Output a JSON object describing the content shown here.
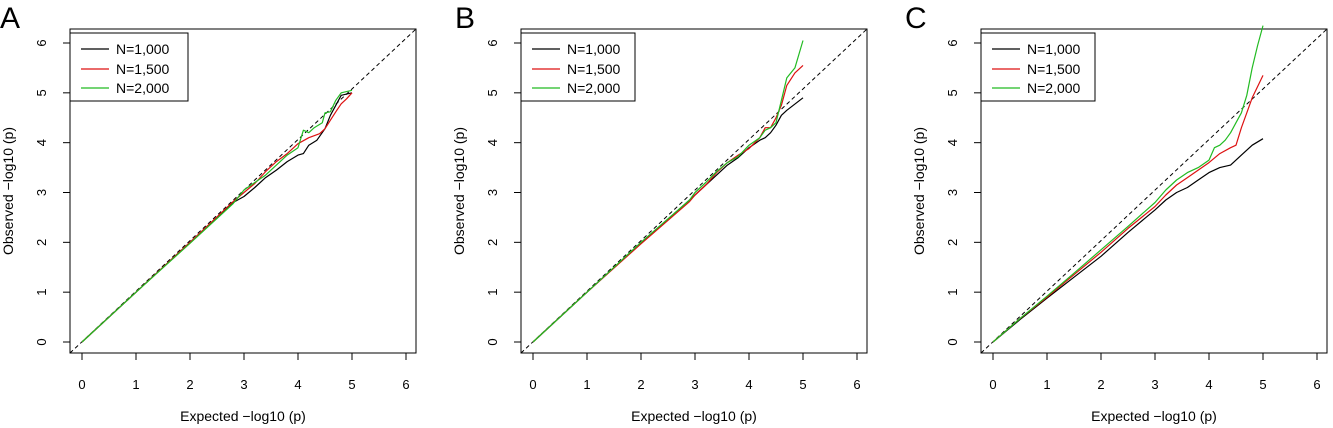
{
  "chart_data": [
    {
      "panel": "A",
      "type": "line",
      "xlabel": "Expected −log10 (p)",
      "ylabel": "Observed −log10 (p)",
      "xlim": [
        0,
        6
      ],
      "ylim": [
        0,
        6
      ],
      "xticks": [
        "0",
        "1",
        "2",
        "3",
        "4",
        "5",
        "6"
      ],
      "yticks": [
        "0",
        "1",
        "2",
        "3",
        "4",
        "5",
        "6"
      ],
      "reference_line": "y = x, dashed",
      "legend_position": "top-left",
      "series": [
        {
          "name": "N=1,000",
          "color": "#000000",
          "points": [
            [
              0,
              0
            ],
            [
              1,
              1
            ],
            [
              2,
              2
            ],
            [
              2.8,
              2.8
            ],
            [
              3.0,
              2.92
            ],
            [
              3.2,
              3.1
            ],
            [
              3.4,
              3.3
            ],
            [
              3.6,
              3.45
            ],
            [
              3.8,
              3.62
            ],
            [
              4.0,
              3.75
            ],
            [
              4.1,
              3.78
            ],
            [
              4.2,
              3.95
            ],
            [
              4.35,
              4.05
            ],
            [
              4.5,
              4.28
            ],
            [
              4.6,
              4.55
            ],
            [
              4.7,
              4.75
            ],
            [
              4.8,
              4.95
            ],
            [
              5.0,
              5.0
            ]
          ]
        },
        {
          "name": "N=1,500",
          "color": "#dd1111",
          "points": [
            [
              0,
              0
            ],
            [
              1,
              1
            ],
            [
              2,
              2
            ],
            [
              2.8,
              2.82
            ],
            [
              3.0,
              3.0
            ],
            [
              3.2,
              3.18
            ],
            [
              3.4,
              3.42
            ],
            [
              3.6,
              3.62
            ],
            [
              3.8,
              3.78
            ],
            [
              4.0,
              3.98
            ],
            [
              4.2,
              4.1
            ],
            [
              4.4,
              4.18
            ],
            [
              4.5,
              4.28
            ],
            [
              4.6,
              4.45
            ],
            [
              4.7,
              4.62
            ],
            [
              4.8,
              4.78
            ],
            [
              4.9,
              4.88
            ],
            [
              5.0,
              5.0
            ]
          ]
        },
        {
          "name": "N=2,000",
          "color": "#22bb22",
          "points": [
            [
              0,
              0
            ],
            [
              1,
              1
            ],
            [
              2,
              1.98
            ],
            [
              2.8,
              2.78
            ],
            [
              3.0,
              3.05
            ],
            [
              3.2,
              3.2
            ],
            [
              3.4,
              3.35
            ],
            [
              3.6,
              3.55
            ],
            [
              3.8,
              3.75
            ],
            [
              4.0,
              3.9
            ],
            [
              4.1,
              4.25
            ],
            [
              4.2,
              4.2
            ],
            [
              4.3,
              4.3
            ],
            [
              4.45,
              4.4
            ],
            [
              4.5,
              4.6
            ],
            [
              4.6,
              4.62
            ],
            [
              4.7,
              4.85
            ],
            [
              4.8,
              5.0
            ],
            [
              5.0,
              5.05
            ]
          ]
        }
      ]
    },
    {
      "panel": "B",
      "type": "line",
      "xlabel": "Expected −log10 (p)",
      "ylabel": "Observed −log10 (p)",
      "xlim": [
        0,
        6
      ],
      "ylim": [
        0,
        6
      ],
      "xticks": [
        "0",
        "1",
        "2",
        "3",
        "4",
        "5",
        "6"
      ],
      "yticks": [
        "0",
        "1",
        "2",
        "3",
        "4",
        "5",
        "6"
      ],
      "reference_line": "y = x, dashed",
      "legend_position": "top-left",
      "series": [
        {
          "name": "N=1,000",
          "color": "#000000",
          "points": [
            [
              0,
              0
            ],
            [
              1,
              1
            ],
            [
              2,
              1.98
            ],
            [
              2.9,
              2.85
            ],
            [
              3.0,
              2.95
            ],
            [
              3.2,
              3.15
            ],
            [
              3.4,
              3.35
            ],
            [
              3.6,
              3.55
            ],
            [
              3.8,
              3.7
            ],
            [
              4.0,
              3.9
            ],
            [
              4.2,
              4.05
            ],
            [
              4.3,
              4.1
            ],
            [
              4.4,
              4.2
            ],
            [
              4.5,
              4.35
            ],
            [
              4.6,
              4.55
            ],
            [
              4.7,
              4.65
            ],
            [
              5.0,
              4.9
            ]
          ]
        },
        {
          "name": "N=1,500",
          "color": "#dd1111",
          "points": [
            [
              0,
              0
            ],
            [
              1,
              1
            ],
            [
              2,
              1.97
            ],
            [
              2.9,
              2.82
            ],
            [
              3.0,
              2.95
            ],
            [
              3.2,
              3.15
            ],
            [
              3.4,
              3.4
            ],
            [
              3.6,
              3.6
            ],
            [
              3.8,
              3.75
            ],
            [
              4.0,
              3.88
            ],
            [
              4.2,
              4.1
            ],
            [
              4.3,
              4.3
            ],
            [
              4.4,
              4.3
            ],
            [
              4.5,
              4.5
            ],
            [
              4.6,
              4.75
            ],
            [
              4.7,
              5.15
            ],
            [
              4.85,
              5.4
            ],
            [
              5.0,
              5.55
            ]
          ]
        },
        {
          "name": "N=2,000",
          "color": "#22bb22",
          "points": [
            [
              0,
              0
            ],
            [
              1,
              1
            ],
            [
              2,
              2
            ],
            [
              2.9,
              2.85
            ],
            [
              3.0,
              3.0
            ],
            [
              3.2,
              3.2
            ],
            [
              3.4,
              3.42
            ],
            [
              3.6,
              3.6
            ],
            [
              3.8,
              3.72
            ],
            [
              4.0,
              3.95
            ],
            [
              4.2,
              4.1
            ],
            [
              4.3,
              4.25
            ],
            [
              4.4,
              4.3
            ],
            [
              4.5,
              4.4
            ],
            [
              4.6,
              4.85
            ],
            [
              4.7,
              5.3
            ],
            [
              4.85,
              5.5
            ],
            [
              5.0,
              6.05
            ]
          ]
        }
      ]
    },
    {
      "panel": "C",
      "type": "line",
      "xlabel": "Expected −log10 (p)",
      "ylabel": "Observed −log10 (p)",
      "xlim": [
        0,
        6
      ],
      "ylim": [
        0,
        6
      ],
      "xticks": [
        "0",
        "1",
        "2",
        "3",
        "4",
        "5",
        "6"
      ],
      "yticks": [
        "0",
        "1",
        "2",
        "3",
        "4",
        "5",
        "6"
      ],
      "reference_line": "y = x, dashed",
      "legend_position": "top-left",
      "series": [
        {
          "name": "N=1,000",
          "color": "#000000",
          "points": [
            [
              0,
              0
            ],
            [
              0.5,
              0.45
            ],
            [
              1,
              0.88
            ],
            [
              1.5,
              1.3
            ],
            [
              2,
              1.72
            ],
            [
              2.5,
              2.2
            ],
            [
              3.0,
              2.65
            ],
            [
              3.2,
              2.85
            ],
            [
              3.4,
              3.0
            ],
            [
              3.6,
              3.1
            ],
            [
              3.8,
              3.25
            ],
            [
              4.0,
              3.4
            ],
            [
              4.2,
              3.5
            ],
            [
              4.4,
              3.55
            ],
            [
              4.6,
              3.75
            ],
            [
              4.8,
              3.95
            ],
            [
              5.0,
              4.08
            ]
          ]
        },
        {
          "name": "N=1,500",
          "color": "#dd1111",
          "points": [
            [
              0,
              0
            ],
            [
              0.5,
              0.47
            ],
            [
              1,
              0.9
            ],
            [
              1.5,
              1.35
            ],
            [
              2,
              1.8
            ],
            [
              2.5,
              2.28
            ],
            [
              3.0,
              2.72
            ],
            [
              3.2,
              2.95
            ],
            [
              3.4,
              3.15
            ],
            [
              3.6,
              3.3
            ],
            [
              3.8,
              3.45
            ],
            [
              4.0,
              3.6
            ],
            [
              4.2,
              3.78
            ],
            [
              4.4,
              3.9
            ],
            [
              4.5,
              3.95
            ],
            [
              4.6,
              4.3
            ],
            [
              4.7,
              4.6
            ],
            [
              4.8,
              4.9
            ],
            [
              5.0,
              5.35
            ]
          ]
        },
        {
          "name": "N=2,000",
          "color": "#22bb22",
          "points": [
            [
              0,
              0
            ],
            [
              0.5,
              0.47
            ],
            [
              1,
              0.92
            ],
            [
              1.5,
              1.38
            ],
            [
              2,
              1.85
            ],
            [
              2.5,
              2.32
            ],
            [
              3.0,
              2.8
            ],
            [
              3.2,
              3.05
            ],
            [
              3.4,
              3.25
            ],
            [
              3.6,
              3.4
            ],
            [
              3.8,
              3.5
            ],
            [
              4.0,
              3.65
            ],
            [
              4.1,
              3.9
            ],
            [
              4.2,
              3.95
            ],
            [
              4.3,
              4.05
            ],
            [
              4.4,
              4.2
            ],
            [
              4.5,
              4.4
            ],
            [
              4.6,
              4.6
            ],
            [
              4.7,
              4.95
            ],
            [
              4.8,
              5.5
            ],
            [
              4.9,
              5.95
            ],
            [
              5.0,
              6.35
            ]
          ]
        }
      ]
    }
  ]
}
